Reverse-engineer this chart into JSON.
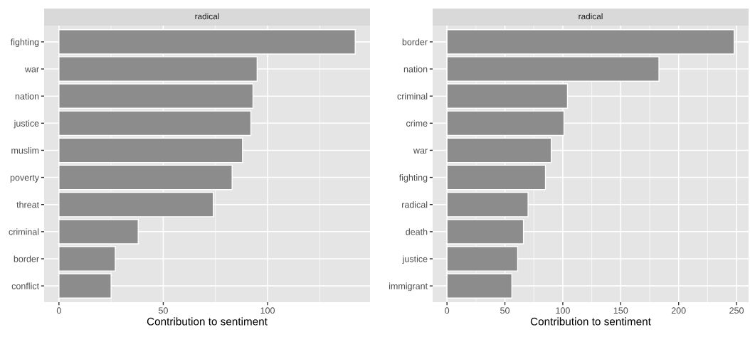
{
  "chart_data": [
    {
      "type": "bar",
      "orientation": "horizontal",
      "title": "radical",
      "xlabel": "Contribution to sentiment",
      "categories": [
        "fighting",
        "war",
        "nation",
        "justice",
        "muslim",
        "poverty",
        "threat",
        "criminal",
        "border",
        "conflict"
      ],
      "values": [
        142,
        95,
        93,
        92,
        88,
        83,
        74,
        38,
        27,
        25
      ],
      "color": "#8c8c8c",
      "xlim": [
        -7.1,
        149.1
      ],
      "xticks": [
        0,
        50,
        100
      ],
      "grid": true,
      "legend": false
    },
    {
      "type": "bar",
      "orientation": "horizontal",
      "title": "radical",
      "xlabel": "Contribution to sentiment",
      "categories": [
        "border",
        "nation",
        "criminal",
        "crime",
        "war",
        "fighting",
        "radical",
        "death",
        "justice",
        "immigrant"
      ],
      "values": [
        248,
        183,
        104,
        101,
        90,
        85,
        70,
        66,
        61,
        56
      ],
      "color": "#8c8c8c",
      "xlim": [
        -12.4,
        260.4
      ],
      "xticks": [
        0,
        50,
        100,
        150,
        200,
        250
      ],
      "grid": true,
      "legend": false
    }
  ]
}
